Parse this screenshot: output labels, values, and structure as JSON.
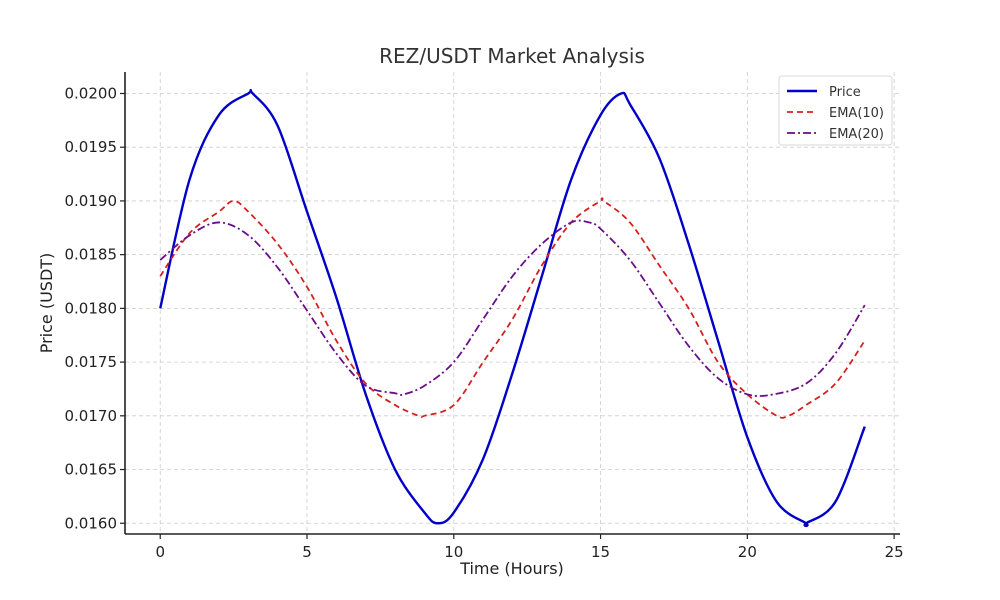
{
  "chart_data": {
    "type": "line",
    "title": "REZ/USDT Market Analysis",
    "xlabel": "Time (Hours)",
    "ylabel": "Price (USDT)",
    "xlim": [
      -1.2,
      25.2
    ],
    "ylim": [
      0.0159,
      0.0202
    ],
    "xticks": [
      0,
      5,
      10,
      15,
      20,
      25
    ],
    "xtick_labels": [
      "0",
      "5",
      "10",
      "15",
      "20",
      "25"
    ],
    "yticks": [
      0.016,
      0.0165,
      0.017,
      0.0175,
      0.018,
      0.0185,
      0.019,
      0.0195,
      0.02
    ],
    "ytick_labels": [
      "0.0160",
      "0.0165",
      "0.0170",
      "0.0175",
      "0.0180",
      "0.0185",
      "0.0190",
      "0.0195",
      "0.0200"
    ],
    "grid": true,
    "legend_position": "top-right",
    "series": [
      {
        "name": "Price",
        "color": "#0000c8",
        "style": "solid",
        "x": [
          0,
          1,
          2,
          3,
          3.15,
          4,
          5,
          6,
          7,
          8,
          9,
          9.45,
          10,
          11,
          12,
          13,
          14,
          15,
          15.7,
          16,
          17,
          18,
          19,
          20,
          21,
          22,
          22.0,
          23,
          24
        ],
        "y": [
          0.018,
          0.0192,
          0.0198,
          0.02,
          0.02,
          0.0197,
          0.0189,
          0.0181,
          0.0172,
          0.0165,
          0.0161,
          0.016,
          0.0161,
          0.0166,
          0.0174,
          0.0183,
          0.0192,
          0.0198,
          0.02,
          0.0199,
          0.0194,
          0.0186,
          0.0177,
          0.0168,
          0.0162,
          0.016,
          0.016,
          0.0162,
          0.0169
        ]
      },
      {
        "name": "EMA(10)",
        "color": "#d62020",
        "style": "dashed",
        "x": [
          0,
          1,
          2,
          2.5,
          3,
          4,
          5,
          6,
          7,
          8,
          8.8,
          9,
          10,
          11,
          12,
          13,
          14,
          15,
          15.1,
          16,
          17,
          18,
          19,
          20,
          21,
          21.4,
          22,
          23,
          24
        ],
        "y": [
          0.0183,
          0.0187,
          0.0189,
          0.019,
          0.0189,
          0.0186,
          0.0182,
          0.0177,
          0.0173,
          0.0171,
          0.017,
          0.017,
          0.0171,
          0.0175,
          0.0179,
          0.0184,
          0.0188,
          0.019,
          0.019,
          0.0188,
          0.0184,
          0.018,
          0.0175,
          0.0172,
          0.017,
          0.017,
          0.0171,
          0.0173,
          0.0177
        ]
      },
      {
        "name": "EMA(20)",
        "color": "#6a0d8a",
        "style": "dashdot",
        "x": [
          0,
          1,
          2,
          3,
          4,
          5,
          6,
          7,
          8,
          8.3,
          9,
          10,
          11,
          12,
          13,
          14,
          14.6,
          15,
          16,
          17,
          18,
          19,
          20,
          20.9,
          22,
          23,
          24
        ],
        "y": [
          0.01845,
          0.01868,
          0.0188,
          0.01868,
          0.01838,
          0.01798,
          0.01758,
          0.01728,
          0.01721,
          0.0172,
          0.01728,
          0.0175,
          0.0179,
          0.0183,
          0.0186,
          0.0188,
          0.0188,
          0.01874,
          0.01845,
          0.01805,
          0.01765,
          0.01735,
          0.0172,
          0.0172,
          0.0173,
          0.01758,
          0.01803
        ]
      }
    ]
  }
}
